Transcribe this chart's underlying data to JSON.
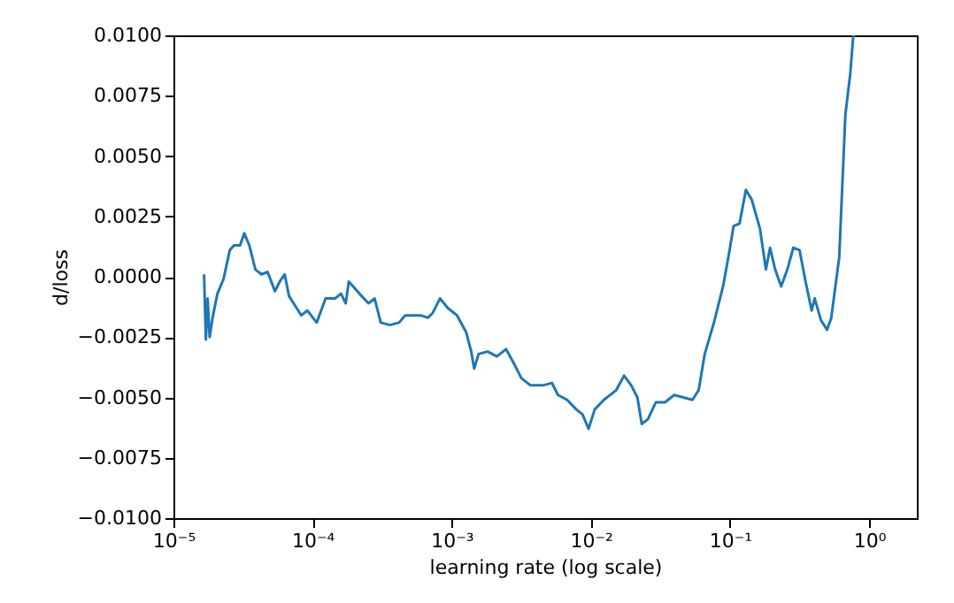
{
  "chart_data": {
    "type": "line",
    "xlabel": "learning rate (log scale)",
    "ylabel": "d/loss",
    "log": "x",
    "grid": false,
    "marker": "none",
    "line_style": "solid",
    "xlim": [
      1e-05,
      2.2
    ],
    "ylim": [
      -0.01,
      0.01
    ],
    "xticks": [
      {
        "value": 1e-05,
        "label": "10⁻⁵"
      },
      {
        "value": 0.0001,
        "label": "10⁻⁴"
      },
      {
        "value": 0.001,
        "label": "10⁻³"
      },
      {
        "value": 0.01,
        "label": "10⁻²"
      },
      {
        "value": 0.1,
        "label": "10⁻¹"
      },
      {
        "value": 1,
        "label": "10⁰"
      }
    ],
    "yticks": [
      {
        "value": -0.01,
        "label": "−0.0100"
      },
      {
        "value": -0.0075,
        "label": "−0.0075"
      },
      {
        "value": -0.005,
        "label": "−0.0050"
      },
      {
        "value": -0.0025,
        "label": "−0.0025"
      },
      {
        "value": 0,
        "label": "0.0000"
      },
      {
        "value": 0.0025,
        "label": "0.0025"
      },
      {
        "value": 0.005,
        "label": "0.0050"
      },
      {
        "value": 0.0075,
        "label": "0.0075"
      },
      {
        "value": 0.01,
        "label": "0.0100"
      }
    ],
    "series": [
      {
        "color": "#1f77b4",
        "x": [
          1.66e-05,
          1.71e-05,
          1.76e-05,
          1.82e-05,
          1.91e-05,
          2.07e-05,
          2.29e-05,
          2.54e-05,
          2.72e-05,
          3.01e-05,
          3.23e-05,
          3.51e-05,
          3.88e-05,
          4.29e-05,
          4.75e-05,
          5.36e-05,
          5.81e-05,
          6.3e-05,
          6.77e-05,
          7.49e-05,
          8.29e-05,
          9.17e-05,
          0.000107,
          0.000124,
          0.000145,
          0.00016,
          0.000173,
          0.000182,
          0.000217,
          0.000252,
          0.000279,
          0.000309,
          0.000359,
          0.000418,
          0.000463,
          0.000596,
          0.000673,
          0.00073,
          0.000823,
          0.000939,
          0.00109,
          0.00127,
          0.00138,
          0.00145,
          0.00156,
          0.00181,
          0.00211,
          0.00246,
          0.00286,
          0.00316,
          0.00368,
          0.00451,
          0.00525,
          0.0058,
          0.00675,
          0.00786,
          0.0087,
          0.00962,
          0.01065,
          0.0124,
          0.0152,
          0.0173,
          0.0195,
          0.0216,
          0.0232,
          0.0257,
          0.0293,
          0.0341,
          0.0397,
          0.0462,
          0.0537,
          0.0595,
          0.0658,
          0.0766,
          0.0891,
          0.0986,
          0.106,
          0.117,
          0.13,
          0.143,
          0.164,
          0.181,
          0.194,
          0.211,
          0.233,
          0.258,
          0.285,
          0.316,
          0.349,
          0.386,
          0.406,
          0.45,
          0.498,
          0.534,
          0.609,
          0.674,
          0.731,
          0.769
        ],
        "values": [
          0.0001,
          -0.0026,
          -0.0009,
          -0.0025,
          -0.0017,
          -0.0007,
          -0.0001,
          0.0011,
          0.0013,
          0.0013,
          0.0018,
          0.0013,
          0.0003,
          0.0001,
          0.0002,
          -0.0006,
          -0.0002,
          0.0001,
          -0.0008,
          -0.0012,
          -0.0016,
          -0.0014,
          -0.0019,
          -0.0009,
          -0.0009,
          -0.0007,
          -0.0011,
          -0.0002,
          -0.0007,
          -0.0011,
          -0.0009,
          -0.0019,
          -0.002,
          -0.0019,
          -0.0016,
          -0.0016,
          -0.0017,
          -0.0015,
          -0.0009,
          -0.0013,
          -0.0016,
          -0.0023,
          -0.0031,
          -0.0038,
          -0.0032,
          -0.0031,
          -0.0033,
          -0.003,
          -0.0037,
          -0.0042,
          -0.0045,
          -0.0045,
          -0.0044,
          -0.0049,
          -0.0051,
          -0.0055,
          -0.0057,
          -0.0063,
          -0.0055,
          -0.0051,
          -0.0047,
          -0.0041,
          -0.0045,
          -0.005,
          -0.0061,
          -0.0059,
          -0.0052,
          -0.0052,
          -0.0049,
          -0.005,
          -0.0051,
          -0.0047,
          -0.0032,
          -0.0019,
          -0.0004,
          0.001,
          0.0021,
          0.0022,
          0.0036,
          0.0032,
          0.002,
          0.0003,
          0.0012,
          0.0003,
          -0.0004,
          0.0003,
          0.0012,
          0.0011,
          -0.0002,
          -0.0014,
          -0.0009,
          -0.0018,
          -0.0022,
          -0.0017,
          0.0008,
          0.0067,
          0.0084,
          0.01
        ]
      }
    ]
  }
}
